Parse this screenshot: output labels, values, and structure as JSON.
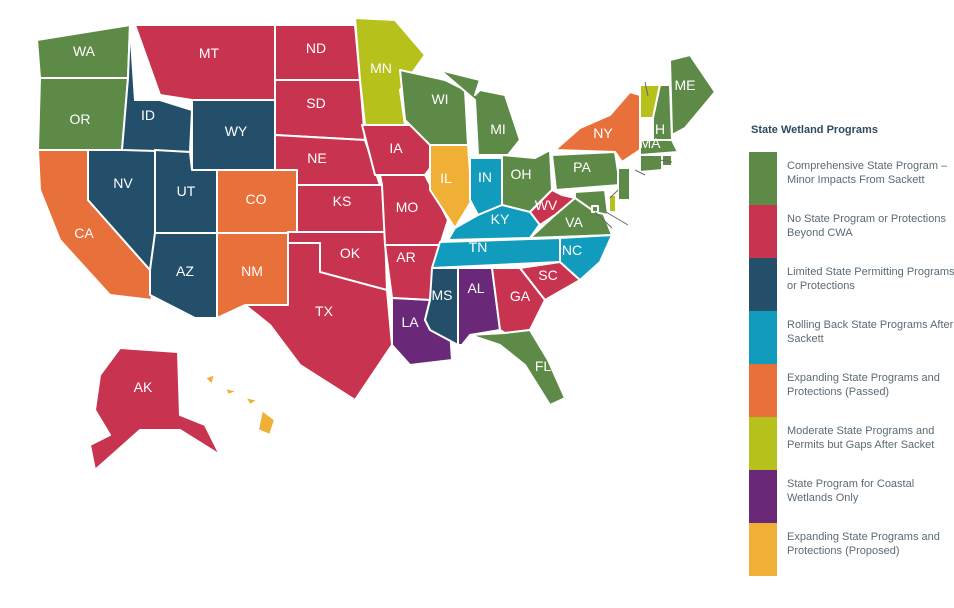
{
  "legend": {
    "title": "State Wetland Programs",
    "items": [
      {
        "key": "comprehensive",
        "color": "#5e8a48",
        "text": "Comprehensive State Program – Minor Impacts From Sackett"
      },
      {
        "key": "none",
        "color": "#c8334f",
        "text": "No State Program or Protections Beyond CWA"
      },
      {
        "key": "limited",
        "color": "#234f6b",
        "text": "Limited State Permitting Programs or Protections"
      },
      {
        "key": "rolling_back",
        "color": "#119bbd",
        "text": "Rolling Back State Programs After Sackett"
      },
      {
        "key": "expanding_passed",
        "color": "#e8703a",
        "text": "Expanding State Programs and Protections (Passed)"
      },
      {
        "key": "moderate",
        "color": "#b6c11c",
        "text": "Moderate State Programs and Permits but Gaps After Sacket"
      },
      {
        "key": "coastal",
        "color": "#6a2878",
        "text": "State Program for Coastal Wetlands Only"
      },
      {
        "key": "expanding_proposed",
        "color": "#f0b036",
        "text": "Expanding State Programs and Protections (Proposed)"
      }
    ]
  },
  "states": [
    {
      "abbr": "WA",
      "cat": "comprehensive"
    },
    {
      "abbr": "OR",
      "cat": "comprehensive"
    },
    {
      "abbr": "CA",
      "cat": "expanding_passed"
    },
    {
      "abbr": "NV",
      "cat": "limited"
    },
    {
      "abbr": "ID",
      "cat": "limited"
    },
    {
      "abbr": "MT",
      "cat": "none"
    },
    {
      "abbr": "WY",
      "cat": "limited"
    },
    {
      "abbr": "UT",
      "cat": "limited"
    },
    {
      "abbr": "AZ",
      "cat": "limited"
    },
    {
      "abbr": "CO",
      "cat": "expanding_passed"
    },
    {
      "abbr": "NM",
      "cat": "expanding_passed"
    },
    {
      "abbr": "ND",
      "cat": "none"
    },
    {
      "abbr": "SD",
      "cat": "none"
    },
    {
      "abbr": "NE",
      "cat": "none"
    },
    {
      "abbr": "KS",
      "cat": "none"
    },
    {
      "abbr": "OK",
      "cat": "none"
    },
    {
      "abbr": "TX",
      "cat": "none"
    },
    {
      "abbr": "MN",
      "cat": "moderate"
    },
    {
      "abbr": "IA",
      "cat": "none"
    },
    {
      "abbr": "MO",
      "cat": "none"
    },
    {
      "abbr": "AR",
      "cat": "none"
    },
    {
      "abbr": "LA",
      "cat": "coastal"
    },
    {
      "abbr": "WI",
      "cat": "comprehensive"
    },
    {
      "abbr": "IL",
      "cat": "expanding_proposed"
    },
    {
      "abbr": "MI",
      "cat": "comprehensive"
    },
    {
      "abbr": "IN",
      "cat": "rolling_back"
    },
    {
      "abbr": "OH",
      "cat": "comprehensive"
    },
    {
      "abbr": "KY",
      "cat": "rolling_back"
    },
    {
      "abbr": "TN",
      "cat": "rolling_back"
    },
    {
      "abbr": "MS",
      "cat": "limited"
    },
    {
      "abbr": "AL",
      "cat": "coastal"
    },
    {
      "abbr": "GA",
      "cat": "none"
    },
    {
      "abbr": "FL",
      "cat": "comprehensive"
    },
    {
      "abbr": "SC",
      "cat": "none"
    },
    {
      "abbr": "NC",
      "cat": "rolling_back"
    },
    {
      "abbr": "VA",
      "cat": "comprehensive"
    },
    {
      "abbr": "WV",
      "cat": "none"
    },
    {
      "abbr": "PA",
      "cat": "comprehensive"
    },
    {
      "abbr": "NY",
      "cat": "expanding_passed"
    },
    {
      "abbr": "VT",
      "cat": "moderate"
    },
    {
      "abbr": "NH",
      "cat": "comprehensive"
    },
    {
      "abbr": "ME",
      "cat": "comprehensive"
    },
    {
      "abbr": "MA",
      "cat": "comprehensive"
    },
    {
      "abbr": "RI",
      "cat": "comprehensive"
    },
    {
      "abbr": "CT",
      "cat": "comprehensive"
    },
    {
      "abbr": "NJ",
      "cat": "comprehensive"
    },
    {
      "abbr": "DE",
      "cat": "moderate"
    },
    {
      "abbr": "MD",
      "cat": "comprehensive"
    },
    {
      "abbr": "DC",
      "cat": "comprehensive"
    },
    {
      "abbr": "AK",
      "cat": "none"
    },
    {
      "abbr": "HI",
      "cat": "expanding_proposed"
    }
  ]
}
